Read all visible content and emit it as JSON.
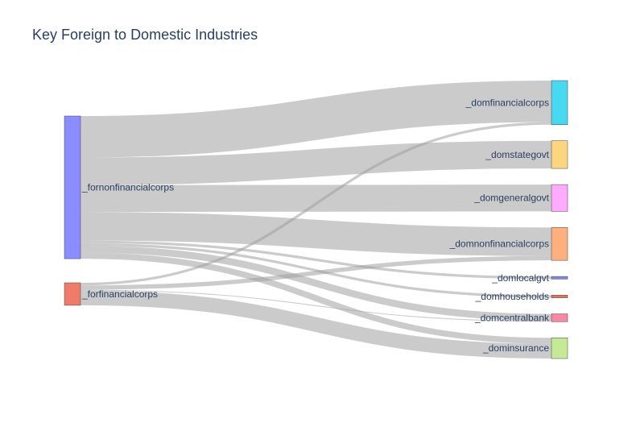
{
  "chart_data": {
    "type": "sankey",
    "title": "Key Foreign to Domestic Industries",
    "colors": {
      "link": "#a0a0a0"
    },
    "nodes": [
      {
        "id": "fornonfin",
        "label": "_fornonfinancialcorps",
        "color": "#8a8cff"
      },
      {
        "id": "forfin",
        "label": "_forfinancialcorps",
        "color": "#f07b68"
      },
      {
        "id": "domfin",
        "label": "_domfinancialcorps",
        "color": "#48d9f2"
      },
      {
        "id": "domstate",
        "label": "_domstategovt",
        "color": "#fed57f"
      },
      {
        "id": "domgen",
        "label": "_domgeneralgovt",
        "color": "#feaafe"
      },
      {
        "id": "domnonfin",
        "label": "_domnonfinancialcorps",
        "color": "#fdb07e"
      },
      {
        "id": "domlocal",
        "label": "_domlocalgvt",
        "color": "#7d86f2"
      },
      {
        "id": "domhh",
        "label": "_domhouseholds",
        "color": "#ea6f5a"
      },
      {
        "id": "domcb",
        "label": "_domcentralbank",
        "color": "#fa87a5"
      },
      {
        "id": "dominsur",
        "label": "_dominsurance",
        "color": "#c5ea96"
      }
    ],
    "links": [
      {
        "source": "fornonfin",
        "target": "domfin",
        "value": 48
      },
      {
        "source": "fornonfin",
        "target": "domstate",
        "value": 32
      },
      {
        "source": "fornonfin",
        "target": "domgen",
        "value": 31
      },
      {
        "source": "fornonfin",
        "target": "domnonfin",
        "value": 33
      },
      {
        "source": "fornonfin",
        "target": "domlocal",
        "value": 3
      },
      {
        "source": "fornonfin",
        "target": "domhh",
        "value": 3
      },
      {
        "source": "fornonfin",
        "target": "domcb",
        "value": 8
      },
      {
        "source": "fornonfin",
        "target": "dominsur",
        "value": 7
      },
      {
        "source": "forfin",
        "target": "domfin",
        "value": 3
      },
      {
        "source": "forfin",
        "target": "domnonfin",
        "value": 5
      },
      {
        "source": "forfin",
        "target": "domcb",
        "value": 1
      },
      {
        "source": "forfin",
        "target": "dominsur",
        "value": 17
      }
    ]
  }
}
